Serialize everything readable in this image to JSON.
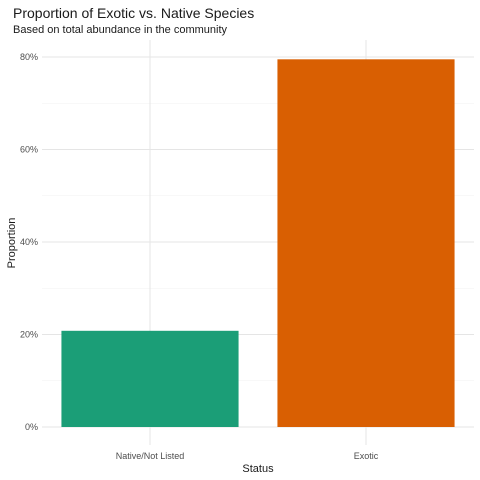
{
  "chart_data": {
    "type": "bar",
    "title": "Proportion of Exotic vs. Native Species",
    "subtitle": "Based on total abundance in the community",
    "xlabel": "Status",
    "ylabel": "Proportion",
    "categories": [
      "Native/Not Listed",
      "Exotic"
    ],
    "values": [
      0.208,
      0.795
    ],
    "colors": [
      "#1B9E77",
      "#D95F02"
    ],
    "ylim": [
      0,
      0.8
    ],
    "yticks": [
      0,
      0.2,
      0.4,
      0.6,
      0.8
    ],
    "ytick_labels": [
      "0%",
      "20%",
      "40%",
      "60%",
      "80%"
    ],
    "grid": true,
    "legend": "none"
  }
}
